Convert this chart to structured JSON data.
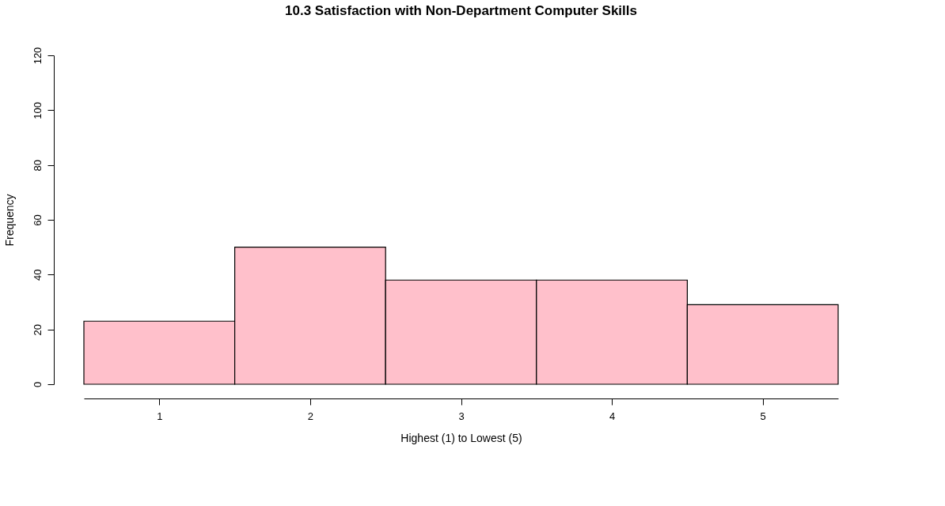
{
  "chart_data": {
    "type": "histogram",
    "title": "10.3 Satisfaction with Non-Department Computer Skills",
    "xlabel": "Highest (1) to Lowest (5)",
    "ylabel": "Frequency",
    "bins": [
      0.5,
      1.5,
      2.5,
      3.5,
      4.5,
      5.5
    ],
    "values": [
      23,
      50,
      38,
      38,
      29
    ],
    "color": "#ffc0cb",
    "xlim": [
      0.5,
      5.5
    ],
    "xticks": [
      1,
      2,
      3,
      4,
      5
    ],
    "ylim": [
      0,
      120
    ],
    "yticks": [
      0,
      20,
      40,
      60,
      80,
      100,
      120
    ],
    "grid": false
  }
}
